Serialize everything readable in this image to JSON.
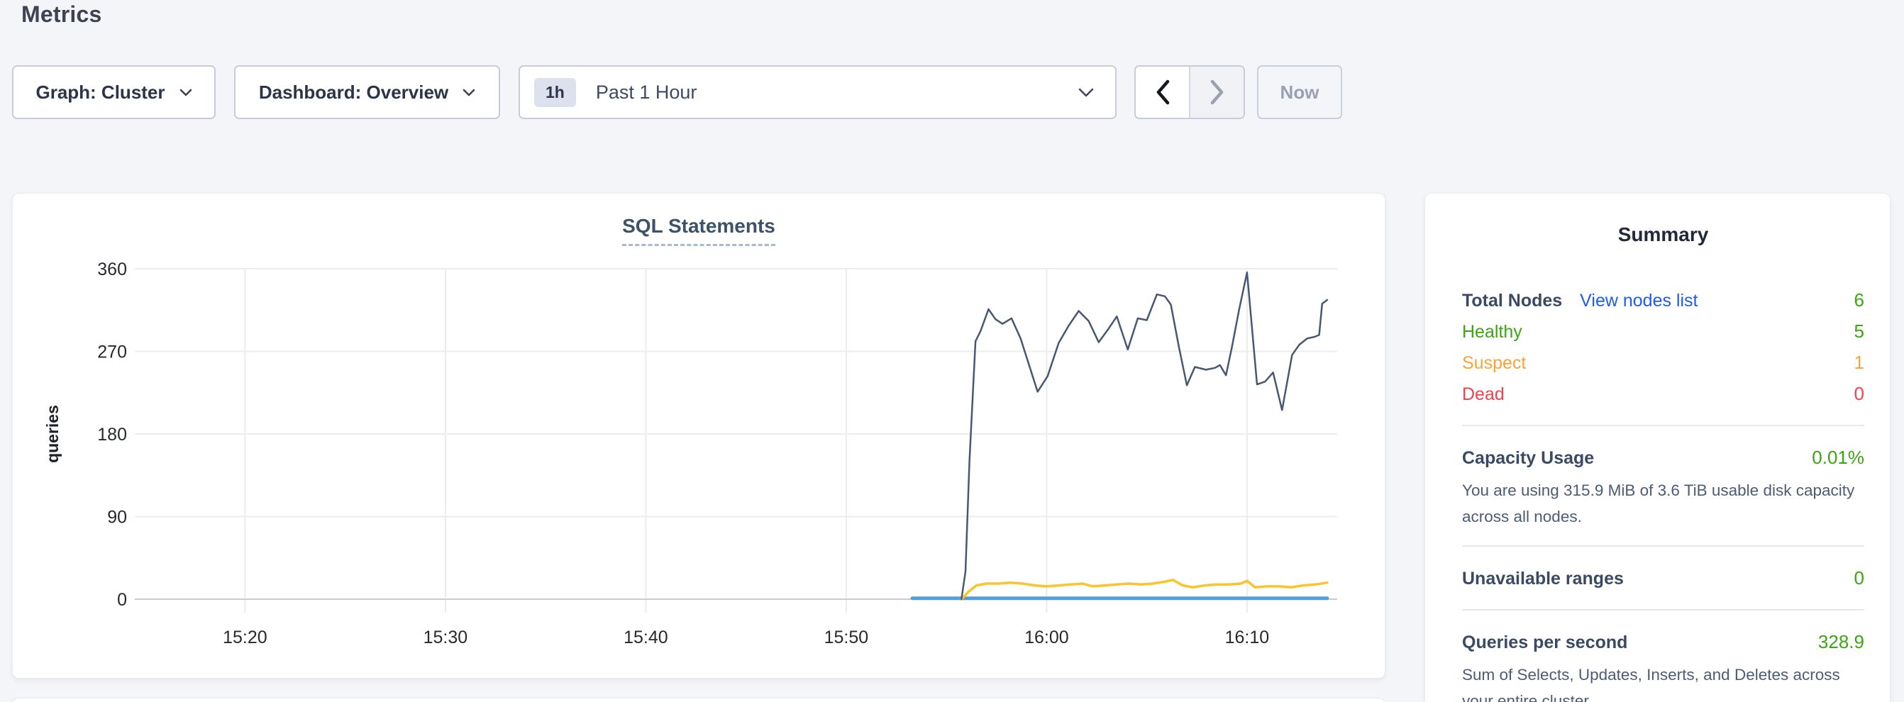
{
  "page": {
    "title": "Metrics"
  },
  "toolbar": {
    "graph_dropdown_label": "Graph: Cluster",
    "dashboard_dropdown_label": "Dashboard: Overview",
    "time_badge": "1h",
    "time_label": "Past 1 Hour",
    "now_button_label": "Now"
  },
  "colors": {
    "accent_link_blue": "#1c5cf5",
    "healthy_green": "#3aa610",
    "suspect_orange": "#f6a43b",
    "dead_red": "#ef424e",
    "series_navy": "#475872",
    "series_yellow": "#fdc32b",
    "series_blue": "#559edb"
  },
  "chart_data": {
    "type": "line",
    "title": "SQL Statements",
    "ylabel": "queries",
    "ylim": [
      0,
      360
    ],
    "y_ticks": [
      0,
      90,
      180,
      270,
      360
    ],
    "x_unit": "minutes after 15:00",
    "x_domain_minutes": [
      14.5,
      74.5
    ],
    "x_ticks": [
      {
        "label": "15:20",
        "m": 20
      },
      {
        "label": "15:30",
        "m": 30
      },
      {
        "label": "15:40",
        "m": 40
      },
      {
        "label": "15:50",
        "m": 50
      },
      {
        "label": "16:00",
        "m": 60
      },
      {
        "label": "16:10",
        "m": 70
      }
    ],
    "grid": true,
    "legend_position": "none",
    "series": [
      {
        "name": "series-3-flat-zero",
        "color": "#559edb",
        "width": 5,
        "points": [
          [
            53.3,
            1
          ],
          [
            74.0,
            1
          ]
        ]
      },
      {
        "name": "series-2-low",
        "color": "#fdc32b",
        "width": 3.5,
        "points": [
          [
            55.75,
            0
          ],
          [
            56.1,
            8
          ],
          [
            56.5,
            15
          ],
          [
            57.0,
            17
          ],
          [
            57.6,
            17
          ],
          [
            58.2,
            18
          ],
          [
            58.8,
            17
          ],
          [
            59.4,
            15
          ],
          [
            60.0,
            14
          ],
          [
            60.6,
            15
          ],
          [
            61.2,
            16
          ],
          [
            61.8,
            17
          ],
          [
            62.3,
            14
          ],
          [
            62.9,
            15
          ],
          [
            63.5,
            16
          ],
          [
            64.1,
            17
          ],
          [
            64.7,
            16
          ],
          [
            65.3,
            17
          ],
          [
            65.9,
            19
          ],
          [
            66.3,
            21
          ],
          [
            66.8,
            15
          ],
          [
            67.3,
            13
          ],
          [
            67.9,
            15
          ],
          [
            68.5,
            16
          ],
          [
            69.1,
            16
          ],
          [
            69.7,
            17
          ],
          [
            70.0,
            20
          ],
          [
            70.4,
            13
          ],
          [
            71.0,
            14
          ],
          [
            71.6,
            14
          ],
          [
            72.2,
            13
          ],
          [
            72.8,
            15
          ],
          [
            73.4,
            16
          ],
          [
            74.0,
            18
          ]
        ]
      },
      {
        "name": "series-1-main",
        "color": "#475872",
        "width": 2.5,
        "points": [
          [
            55.75,
            0
          ],
          [
            55.95,
            30
          ],
          [
            56.15,
            150
          ],
          [
            56.45,
            281
          ],
          [
            56.7,
            292
          ],
          [
            57.1,
            316
          ],
          [
            57.45,
            305
          ],
          [
            57.8,
            300
          ],
          [
            58.25,
            306
          ],
          [
            58.7,
            284
          ],
          [
            59.55,
            226
          ],
          [
            60.05,
            243
          ],
          [
            60.6,
            279
          ],
          [
            61.1,
            298
          ],
          [
            61.6,
            314
          ],
          [
            62.1,
            303
          ],
          [
            62.6,
            280
          ],
          [
            63.1,
            295
          ],
          [
            63.5,
            308
          ],
          [
            64.05,
            272
          ],
          [
            64.55,
            306
          ],
          [
            65.0,
            304
          ],
          [
            65.5,
            332
          ],
          [
            65.9,
            330
          ],
          [
            66.2,
            321
          ],
          [
            66.6,
            275
          ],
          [
            67.0,
            233
          ],
          [
            67.4,
            253
          ],
          [
            67.95,
            250
          ],
          [
            68.4,
            252
          ],
          [
            68.65,
            255
          ],
          [
            68.95,
            244
          ],
          [
            69.25,
            275
          ],
          [
            69.6,
            315
          ],
          [
            70.0,
            356
          ],
          [
            70.5,
            234
          ],
          [
            70.9,
            237
          ],
          [
            71.3,
            247
          ],
          [
            71.75,
            206
          ],
          [
            72.25,
            266
          ],
          [
            72.6,
            277
          ],
          [
            73.0,
            284
          ],
          [
            73.4,
            286
          ],
          [
            73.6,
            288
          ],
          [
            73.75,
            322
          ],
          [
            74.0,
            326
          ]
        ]
      }
    ]
  },
  "summary": {
    "title": "Summary",
    "total_nodes": {
      "label": "Total Nodes",
      "link": "View nodes list",
      "value": "6"
    },
    "node_status": [
      {
        "label": "Healthy",
        "value": "5"
      },
      {
        "label": "Suspect",
        "value": "1"
      },
      {
        "label": "Dead",
        "value": "0"
      }
    ],
    "capacity": {
      "label": "Capacity Usage",
      "value": "0.01%",
      "description": "You are using 315.9 MiB of 3.6 TiB usable disk capacity across all nodes."
    },
    "unavailable_ranges": {
      "label": "Unavailable ranges",
      "value": "0"
    },
    "qps": {
      "label": "Queries per second",
      "value": "328.9",
      "description": "Sum of Selects, Updates, Inserts, and Deletes across your entire cluster."
    }
  }
}
